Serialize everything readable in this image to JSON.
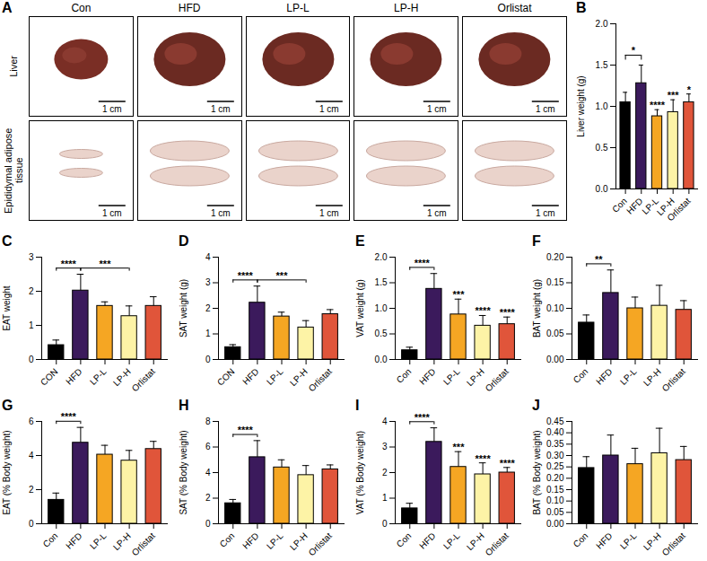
{
  "image_panel": {
    "letter": "A",
    "columns": [
      "Con",
      "HFD",
      "LP-L",
      "LP-H",
      "Orlistat"
    ],
    "rows": [
      "Liver",
      "Epididymal adipose tissue"
    ],
    "scale_bar": "1 cm"
  },
  "chart_data": [
    {
      "panel": "B",
      "type": "bar",
      "ylabel": "Liver weight (g)",
      "categories": [
        "Con",
        "HFD",
        "LP-L",
        "LP-H",
        "Orlistat"
      ],
      "values": [
        1.05,
        1.28,
        0.88,
        0.93,
        1.05
      ],
      "errors": [
        0.12,
        0.22,
        0.08,
        0.15,
        0.1
      ],
      "colors": [
        "#000000",
        "#3b1a5c",
        "#f5a623",
        "#fdf3a6",
        "#e0553a"
      ],
      "ylim": [
        0,
        2
      ],
      "yticks": [
        {
          "value": 0,
          "label": "0.0"
        },
        0.5,
        {
          "value": 1,
          "label": "1.0"
        },
        1.5,
        {
          "value": 2,
          "label": "2.0"
        }
      ],
      "annotations": [
        {
          "text": "*",
          "from": "Con",
          "to": "HFD"
        },
        {
          "text": "****",
          "at": "LP-L"
        },
        {
          "text": "***",
          "at": "LP-H"
        },
        {
          "text": "*",
          "at": "Orlistat"
        }
      ]
    },
    {
      "panel": "C",
      "type": "bar",
      "ylabel": "EAT weight",
      "categories": [
        "CON",
        "HFD",
        "LP-L",
        "LP-H",
        "Orlistat"
      ],
      "values": [
        0.42,
        2.02,
        1.57,
        1.27,
        1.57
      ],
      "errors": [
        0.15,
        0.48,
        0.12,
        0.3,
        0.27
      ],
      "colors": [
        "#000000",
        "#3b1a5c",
        "#f5a623",
        "#fdf3a6",
        "#e0553a"
      ],
      "ylim": [
        0,
        3
      ],
      "yticks": [
        0,
        1,
        2,
        3
      ],
      "annotations": [
        {
          "text": "****",
          "from": "CON",
          "to": "HFD"
        },
        {
          "text": "***",
          "from": "HFD",
          "to": "LP-H"
        }
      ]
    },
    {
      "panel": "D",
      "type": "bar",
      "ylabel": "SAT weight (g)",
      "categories": [
        "CON",
        "HFD",
        "LP-L",
        "LP-H",
        "Orlistat"
      ],
      "values": [
        0.48,
        2.22,
        1.68,
        1.25,
        1.77
      ],
      "errors": [
        0.1,
        0.65,
        0.17,
        0.27,
        0.18
      ],
      "colors": [
        "#000000",
        "#3b1a5c",
        "#f5a623",
        "#fdf3a6",
        "#e0553a"
      ],
      "ylim": [
        0,
        4
      ],
      "yticks": [
        0,
        1,
        2,
        3,
        4
      ],
      "annotations": [
        {
          "text": "****",
          "from": "CON",
          "to": "HFD"
        },
        {
          "text": "***",
          "from": "HFD",
          "to": "LP-H"
        }
      ]
    },
    {
      "panel": "E",
      "type": "bar",
      "ylabel": "VAT weight (g)",
      "categories": [
        "Con",
        "HFD",
        "LP-L",
        "LP-H",
        "Orlistat"
      ],
      "values": [
        0.18,
        1.38,
        0.88,
        0.66,
        0.69
      ],
      "errors": [
        0.06,
        0.3,
        0.3,
        0.2,
        0.14
      ],
      "colors": [
        "#000000",
        "#3b1a5c",
        "#f5a623",
        "#fdf3a6",
        "#e0553a"
      ],
      "ylim": [
        0,
        2
      ],
      "yticks": [
        {
          "value": 0,
          "label": "0.0"
        },
        0.5,
        {
          "value": 1,
          "label": "1.0"
        },
        1.5,
        {
          "value": 2,
          "label": "2.0"
        }
      ],
      "annotations": [
        {
          "text": "****",
          "from": "Con",
          "to": "HFD"
        },
        {
          "text": "***",
          "at": "LP-L"
        },
        {
          "text": "****",
          "at": "LP-H"
        },
        {
          "text": "****",
          "at": "Orlistat"
        }
      ]
    },
    {
      "panel": "F",
      "type": "bar",
      "ylabel": "BAT weight (g)",
      "categories": [
        "Con",
        "HFD",
        "LP-L",
        "LP-H",
        "Orlistat"
      ],
      "values": [
        0.072,
        0.13,
        0.1,
        0.105,
        0.097
      ],
      "errors": [
        0.015,
        0.045,
        0.022,
        0.04,
        0.018
      ],
      "colors": [
        "#000000",
        "#3b1a5c",
        "#f5a623",
        "#fdf3a6",
        "#e0553a"
      ],
      "ylim": [
        0,
        0.2
      ],
      "yticks": [
        {
          "value": 0,
          "label": "0.00"
        },
        0.05,
        {
          "value": 0.1,
          "label": "0.10"
        },
        0.15,
        {
          "value": 0.2,
          "label": "0.20"
        }
      ],
      "annotations": [
        {
          "text": "**",
          "from": "Con",
          "to": "HFD"
        }
      ]
    },
    {
      "panel": "G",
      "type": "bar",
      "ylabel": "EAT (% Body weight)",
      "categories": [
        "Con",
        "HFD",
        "LP-L",
        "LP-H",
        "Orlistat"
      ],
      "values": [
        1.4,
        4.75,
        4.05,
        3.7,
        4.38
      ],
      "errors": [
        0.4,
        0.9,
        0.55,
        0.6,
        0.45
      ],
      "colors": [
        "#000000",
        "#3b1a5c",
        "#f5a623",
        "#fdf3a6",
        "#e0553a"
      ],
      "ylim": [
        0,
        6
      ],
      "yticks": [
        0,
        2,
        4,
        6
      ],
      "annotations": [
        {
          "text": "****",
          "from": "Con",
          "to": "HFD"
        }
      ]
    },
    {
      "panel": "H",
      "type": "bar",
      "ylabel": "SAT (% Body weight)",
      "categories": [
        "Con",
        "HFD",
        "LP-L",
        "LP-H",
        "Orlistat"
      ],
      "values": [
        1.6,
        5.2,
        4.4,
        3.8,
        4.25
      ],
      "errors": [
        0.3,
        1.3,
        0.6,
        0.75,
        0.35
      ],
      "colors": [
        "#000000",
        "#3b1a5c",
        "#f5a623",
        "#fdf3a6",
        "#e0553a"
      ],
      "ylim": [
        0,
        8
      ],
      "yticks": [
        0,
        2,
        4,
        6,
        8
      ],
      "annotations": [
        {
          "text": "****",
          "from": "Con",
          "to": "HFD"
        }
      ]
    },
    {
      "panel": "I",
      "type": "bar",
      "ylabel": "VAT (% Body weight)",
      "categories": [
        "Con",
        "HFD",
        "LP-L",
        "LP-H",
        "Orlistat"
      ],
      "values": [
        0.6,
        3.2,
        2.22,
        1.93,
        2.0
      ],
      "errors": [
        0.2,
        0.55,
        0.6,
        0.45,
        0.2
      ],
      "colors": [
        "#000000",
        "#3b1a5c",
        "#f5a623",
        "#fdf3a6",
        "#e0553a"
      ],
      "ylim": [
        0,
        4
      ],
      "yticks": [
        0,
        1,
        2,
        3,
        4
      ],
      "annotations": [
        {
          "text": "****",
          "from": "Con",
          "to": "HFD"
        },
        {
          "text": "***",
          "at": "LP-L"
        },
        {
          "text": "****",
          "at": "LP-H"
        },
        {
          "text": "****",
          "at": "Orlistat"
        }
      ]
    },
    {
      "panel": "J",
      "type": "bar",
      "ylabel": "BAT (% Body weight)",
      "categories": [
        "Con",
        "HFD",
        "LP-L",
        "LP-H",
        "Orlistat"
      ],
      "values": [
        0.245,
        0.3,
        0.262,
        0.31,
        0.28
      ],
      "errors": [
        0.05,
        0.09,
        0.07,
        0.11,
        0.06
      ],
      "colors": [
        "#000000",
        "#3b1a5c",
        "#f5a623",
        "#fdf3a6",
        "#e0553a"
      ],
      "ylim": [
        0,
        0.45
      ],
      "yticks": [
        {
          "value": 0,
          "label": "0.00"
        },
        0.05,
        {
          "value": 0.1,
          "label": "0.10"
        },
        0.15,
        {
          "value": 0.2,
          "label": "0.20"
        },
        0.25,
        {
          "value": 0.3,
          "label": "0.30"
        },
        0.35,
        {
          "value": 0.4,
          "label": "0.40"
        },
        0.45
      ],
      "annotations": []
    }
  ]
}
